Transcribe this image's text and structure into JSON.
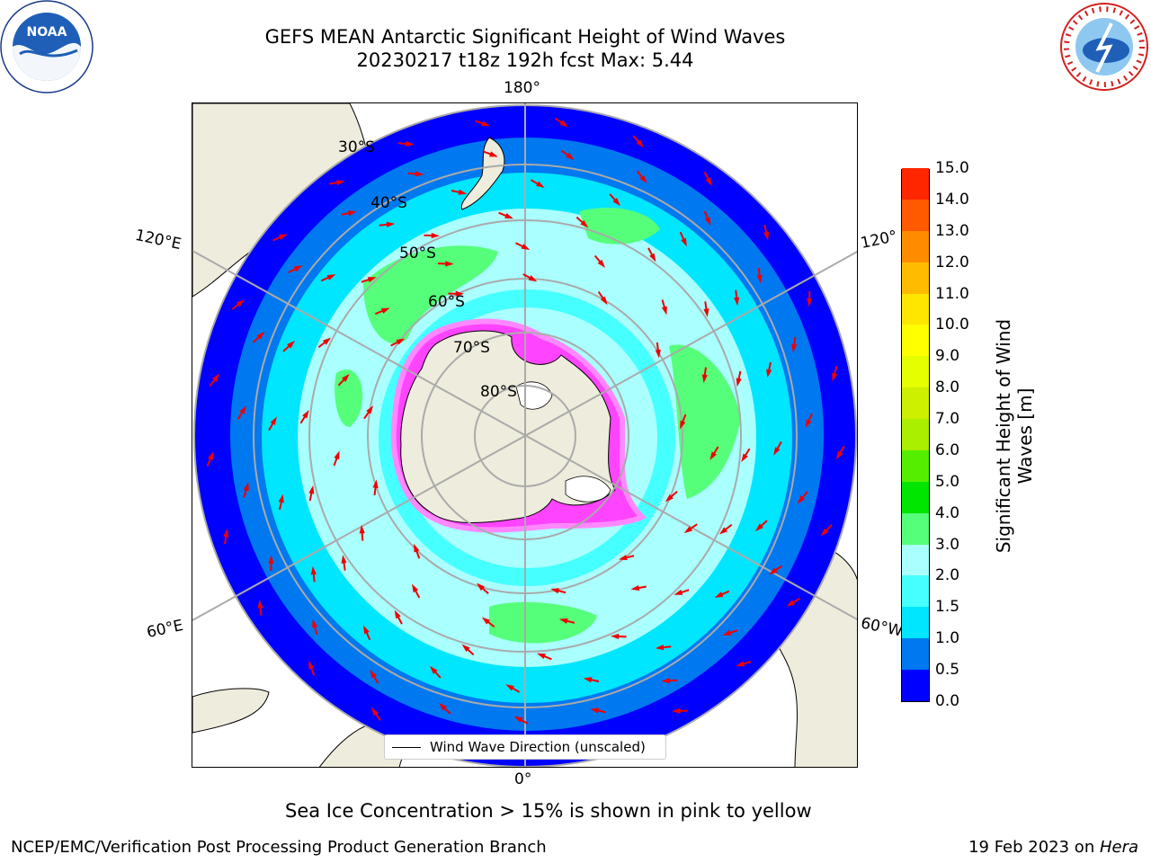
{
  "title": {
    "line1": "GEFS MEAN Antarctic Significant Height of Wind Waves",
    "line2": "20230217 t18z 192h fcst   Max: 5.44"
  },
  "map": {
    "longitude_labels": {
      "top": "180°",
      "bottom": "0°",
      "left_upper": "120°E",
      "left_lower": "60°E",
      "right_upper": "120°",
      "right_lower": "60°W"
    },
    "latitude_labels": [
      "30°S",
      "40°S",
      "50°S",
      "60°S",
      "70°S",
      "80°S"
    ],
    "legend_label": "Wind Wave Direction (unscaled)",
    "colors": {
      "land": "#eeecdc",
      "arrows": "#ee0000",
      "gridlines": "#aaaaaa"
    }
  },
  "colorbar": {
    "label": "Significant Height of Wind Waves [m]",
    "ticks": [
      "0.0",
      "0.5",
      "1.0",
      "1.5",
      "2.0",
      "3.0",
      "4.0",
      "5.0",
      "6.0",
      "7.0",
      "8.0",
      "9.0",
      "10.0",
      "11.0",
      "12.0",
      "13.0",
      "14.0",
      "15.0"
    ],
    "colors": [
      "#0000ff",
      "#0078f0",
      "#00e6ff",
      "#46ffff",
      "#aaffff",
      "#55ff7a",
      "#00e600",
      "#55ee00",
      "#aaee00",
      "#ccf000",
      "#e6ff00",
      "#ffff00",
      "#ffe600",
      "#ffbb00",
      "#ff8c00",
      "#ff5a00",
      "#ff2600"
    ]
  },
  "annotation": "Sea Ice Concentration > 15% is shown in pink to yellow",
  "footer": {
    "left": "NCEP/EMC/Verification Post Processing Product Generation Branch",
    "right_date": "19 Feb 2023 on ",
    "right_host": "Hera"
  },
  "logos": {
    "left": "NOAA",
    "right": "NATIONAL WEATHER SERVICE"
  }
}
